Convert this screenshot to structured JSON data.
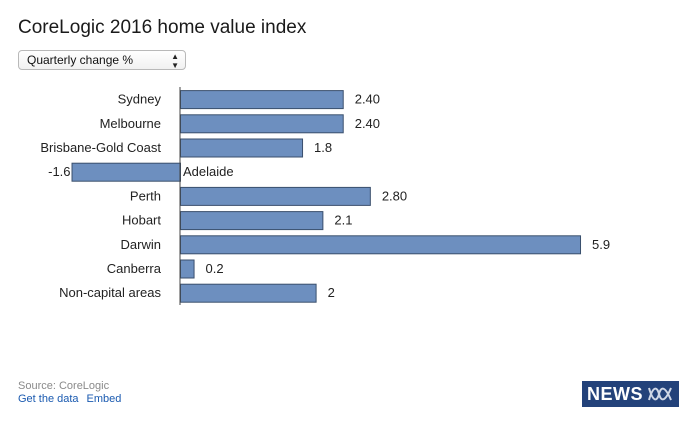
{
  "title": "CoreLogic 2016 home value index",
  "selector": {
    "selected": "Quarterly change %"
  },
  "chart_data": {
    "type": "bar",
    "orientation": "horizontal",
    "title": "CoreLogic 2016 home value index",
    "xlabel": "",
    "ylabel": "",
    "categories": [
      "Sydney",
      "Melbourne",
      "Brisbane-Gold Coast",
      "Adelaide",
      "Perth",
      "Hobart",
      "Darwin",
      "Canberra",
      "Non-capital areas"
    ],
    "values": [
      2.4,
      2.4,
      1.8,
      -1.6,
      2.8,
      2.1,
      5.9,
      0.2,
      2
    ],
    "value_labels": [
      "2.40",
      "2.40",
      "1.8",
      "-1.6",
      "2.80",
      "2.1",
      "5.9",
      "0.2",
      "2"
    ],
    "grid": false,
    "bar_color": "#6d8fbf",
    "bar_border_color": "#3a4f6d"
  },
  "footer": {
    "source": "Source: CoreLogic",
    "get_data": "Get the data",
    "embed": "Embed"
  },
  "logo": {
    "text": "NEWS",
    "color": "#23427a"
  }
}
